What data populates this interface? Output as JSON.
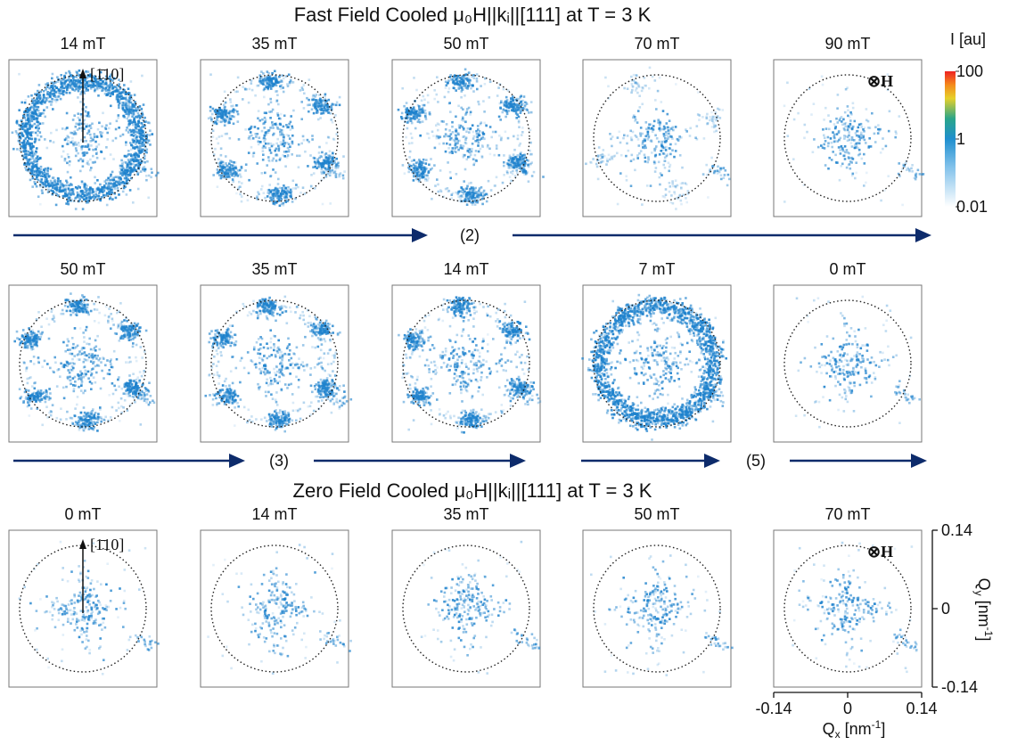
{
  "sections": [
    {
      "title": "Fast Field Cooled μ₀H||kᵢ||[111] at T = 3 K",
      "rows": [
        {
          "fields": [
            "14 mT",
            "35 mT",
            "50 mT",
            "70 mT",
            "90 mT"
          ],
          "arrows": [
            "(2)"
          ]
        },
        {
          "fields": [
            "50 mT",
            "35 mT",
            "14 mT",
            "7 mT",
            "0 mT"
          ],
          "arrows": [
            "(3)",
            "(5)"
          ]
        }
      ]
    },
    {
      "title": "Zero Field Cooled μ₀H||kᵢ||[111] at T = 3 K",
      "rows": [
        {
          "fields": [
            "0 mT",
            "14 mT",
            "35 mT",
            "50 mT",
            "70 mT"
          ]
        }
      ]
    }
  ],
  "direction_label": "[1̄10]",
  "field_symbol": "⊗H",
  "colorbar": {
    "label": "I [au]",
    "ticks": [
      100,
      1,
      0.01
    ],
    "range": [
      0.01,
      100
    ],
    "scale": "log"
  },
  "q_axes": {
    "x_label": [
      "Q",
      "x",
      " [nm",
      "-1",
      "]"
    ],
    "y_label": [
      "Q",
      "y",
      " [nm",
      "-1",
      "]"
    ],
    "lim": [
      -0.14,
      0.14
    ],
    "ticks": [
      -0.14,
      0,
      0.14
    ]
  }
}
